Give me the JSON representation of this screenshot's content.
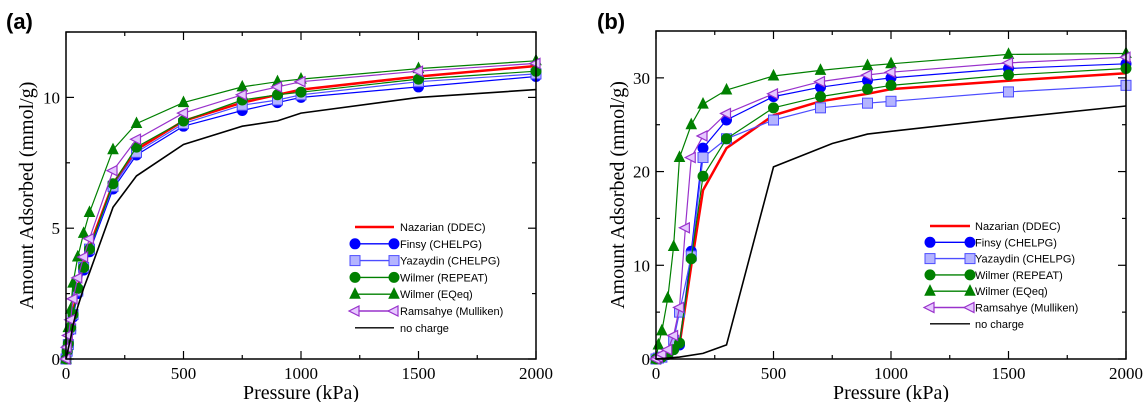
{
  "chart_data": [
    {
      "type": "line",
      "panel_label": "(a)",
      "xlabel": "Pressure (kPa)",
      "ylabel": "Amount Adsorbed (mmol/g)",
      "xlim": [
        0,
        2000
      ],
      "ylim": [
        0,
        12.5
      ],
      "xticks": [
        0,
        500,
        1000,
        1500,
        2000
      ],
      "yticks": [
        0,
        5,
        10
      ],
      "minor_ticks": true,
      "grid": false,
      "legend_position": "bottom-right",
      "series": [
        {
          "name": "Nazarian (DDEC)",
          "color": "#ff0000",
          "marker": "none",
          "x": [
            0,
            5,
            10,
            20,
            30,
            50,
            75,
            100,
            200,
            300,
            500,
            750,
            900,
            1000,
            1500,
            2000
          ],
          "y": [
            0,
            0.3,
            0.6,
            1.2,
            1.8,
            2.7,
            3.6,
            4.3,
            6.7,
            8.0,
            9.1,
            9.8,
            10.1,
            10.3,
            10.8,
            11.2
          ]
        },
        {
          "name": "Finsy (CHELPG)",
          "color": "#0000ff",
          "marker": "circle",
          "x": [
            0,
            5,
            10,
            20,
            30,
            50,
            75,
            100,
            200,
            300,
            500,
            750,
            900,
            1000,
            1500,
            2000
          ],
          "y": [
            0,
            0.25,
            0.5,
            1.1,
            1.6,
            2.5,
            3.4,
            4.1,
            6.5,
            7.8,
            8.9,
            9.5,
            9.8,
            10.0,
            10.4,
            10.8
          ]
        },
        {
          "name": "Yazaydin (CHELPG)",
          "color": "#4d4dff",
          "marker": "square",
          "x": [
            0,
            5,
            10,
            20,
            30,
            50,
            75,
            100,
            200,
            300,
            500,
            750,
            900,
            1000,
            1500,
            2000
          ],
          "y": [
            0,
            0.3,
            0.55,
            1.15,
            1.7,
            2.6,
            3.5,
            4.2,
            6.6,
            7.9,
            9.0,
            9.7,
            9.9,
            10.1,
            10.6,
            10.9
          ]
        },
        {
          "name": "Wilmer (REPEAT)",
          "color": "#008000",
          "marker": "circle",
          "x": [
            0,
            5,
            10,
            20,
            30,
            50,
            75,
            100,
            200,
            300,
            500,
            750,
            900,
            1000,
            1500,
            2000
          ],
          "y": [
            0,
            0.3,
            0.6,
            1.2,
            1.7,
            2.7,
            3.5,
            4.2,
            6.7,
            8.1,
            9.1,
            9.9,
            10.1,
            10.2,
            10.7,
            11.0
          ]
        },
        {
          "name": "Wilmer (EQeq)",
          "color": "#008000",
          "marker": "triangle",
          "x": [
            0,
            5,
            10,
            20,
            30,
            50,
            75,
            100,
            200,
            300,
            500,
            750,
            900,
            1000,
            1500,
            2000
          ],
          "y": [
            0,
            0.6,
            1.2,
            1.9,
            2.9,
            3.9,
            4.8,
            5.6,
            8.0,
            9.0,
            9.8,
            10.4,
            10.6,
            10.7,
            11.1,
            11.4
          ]
        },
        {
          "name": "Ramsahye (Mulliken)",
          "color": "#9932cc",
          "marker": "triangle-left",
          "x": [
            0,
            5,
            10,
            20,
            30,
            50,
            75,
            100,
            200,
            300,
            500,
            750,
            900,
            1000,
            1500,
            2000
          ],
          "y": [
            0,
            0.45,
            0.9,
            1.5,
            2.3,
            3.1,
            3.9,
            4.6,
            7.2,
            8.4,
            9.4,
            10.1,
            10.4,
            10.6,
            11.0,
            11.3
          ]
        },
        {
          "name": "no charge",
          "color": "#000000",
          "marker": "none",
          "x": [
            0,
            5,
            10,
            20,
            30,
            50,
            75,
            100,
            200,
            300,
            500,
            750,
            900,
            1000,
            1500,
            2000
          ],
          "y": [
            0,
            0.2,
            0.4,
            0.8,
            1.3,
            2.0,
            2.7,
            3.3,
            5.8,
            7.0,
            8.2,
            8.9,
            9.1,
            9.4,
            10.0,
            10.3
          ]
        }
      ]
    },
    {
      "type": "line",
      "panel_label": "(b)",
      "xlabel": "Pressure (kPa)",
      "ylabel": "Amount Adsorbed (mmol/g)",
      "xlim": [
        0,
        2000
      ],
      "ylim": [
        0,
        35
      ],
      "xticks": [
        0,
        500,
        1000,
        1500,
        2000
      ],
      "yticks": [
        0,
        10,
        20,
        30
      ],
      "minor_ticks": true,
      "grid": false,
      "legend_position": "bottom-right",
      "series": [
        {
          "name": "Nazarian (DDEC)",
          "color": "#ff0000",
          "marker": "none",
          "x": [
            0,
            10,
            25,
            50,
            75,
            100,
            150,
            200,
            300,
            500,
            700,
            900,
            1000,
            1500,
            2000
          ],
          "y": [
            0,
            0.1,
            0.2,
            0.5,
            0.8,
            1.5,
            10.0,
            18.0,
            22.5,
            26.0,
            27.5,
            28.3,
            28.8,
            29.7,
            30.5
          ]
        },
        {
          "name": "Finsy (CHELPG)",
          "color": "#0000ff",
          "marker": "circle",
          "x": [
            0,
            10,
            25,
            50,
            75,
            100,
            150,
            200,
            300,
            500,
            700,
            900,
            1000,
            1500,
            2000
          ],
          "y": [
            0,
            0.1,
            0.2,
            0.5,
            1.0,
            1.5,
            11.5,
            22.5,
            25.5,
            28.0,
            29.0,
            29.7,
            30.0,
            31.0,
            31.5
          ]
        },
        {
          "name": "Yazaydin (CHELPG)",
          "color": "#4d4dff",
          "marker": "square",
          "x": [
            0,
            10,
            25,
            50,
            75,
            100,
            150,
            200,
            300,
            500,
            700,
            900,
            1000,
            1500,
            2000
          ],
          "y": [
            0,
            0.1,
            0.2,
            0.6,
            2.0,
            5.0,
            11.0,
            21.5,
            23.5,
            25.5,
            26.8,
            27.3,
            27.5,
            28.5,
            29.2
          ]
        },
        {
          "name": "Wilmer (REPEAT)",
          "color": "#008000",
          "marker": "circle",
          "x": [
            0,
            10,
            25,
            50,
            75,
            100,
            150,
            200,
            300,
            500,
            700,
            900,
            1000,
            1500,
            2000
          ],
          "y": [
            0,
            0.1,
            0.2,
            0.5,
            1.0,
            1.7,
            10.7,
            19.5,
            23.5,
            26.8,
            28.0,
            28.8,
            29.2,
            30.3,
            31.0
          ]
        },
        {
          "name": "Wilmer (EQeq)",
          "color": "#008000",
          "marker": "triangle",
          "x": [
            0,
            10,
            25,
            50,
            75,
            100,
            150,
            200,
            300,
            500,
            700,
            900,
            1000,
            1500,
            2000
          ],
          "y": [
            0,
            1.5,
            3.0,
            6.5,
            12.0,
            21.5,
            25.0,
            27.2,
            28.7,
            30.2,
            30.8,
            31.3,
            31.5,
            32.5,
            32.6
          ]
        },
        {
          "name": "Ramsahye (Mulliken)",
          "color": "#9932cc",
          "marker": "triangle-left",
          "x": [
            0,
            10,
            25,
            50,
            75,
            100,
            125,
            150,
            200,
            300,
            500,
            700,
            900,
            1000,
            1500,
            2000
          ],
          "y": [
            0,
            0.2,
            0.5,
            1.0,
            2.5,
            5.5,
            14.0,
            21.5,
            23.8,
            26.2,
            28.3,
            29.6,
            30.3,
            30.6,
            31.6,
            32.2
          ]
        },
        {
          "name": "no charge",
          "color": "#000000",
          "marker": "none",
          "x": [
            0,
            50,
            100,
            200,
            300,
            500,
            750,
            900,
            1000,
            1500,
            2000
          ],
          "y": [
            0,
            0.1,
            0.2,
            0.6,
            1.5,
            20.5,
            23.0,
            24.0,
            24.3,
            25.7,
            27.0
          ]
        }
      ]
    }
  ]
}
